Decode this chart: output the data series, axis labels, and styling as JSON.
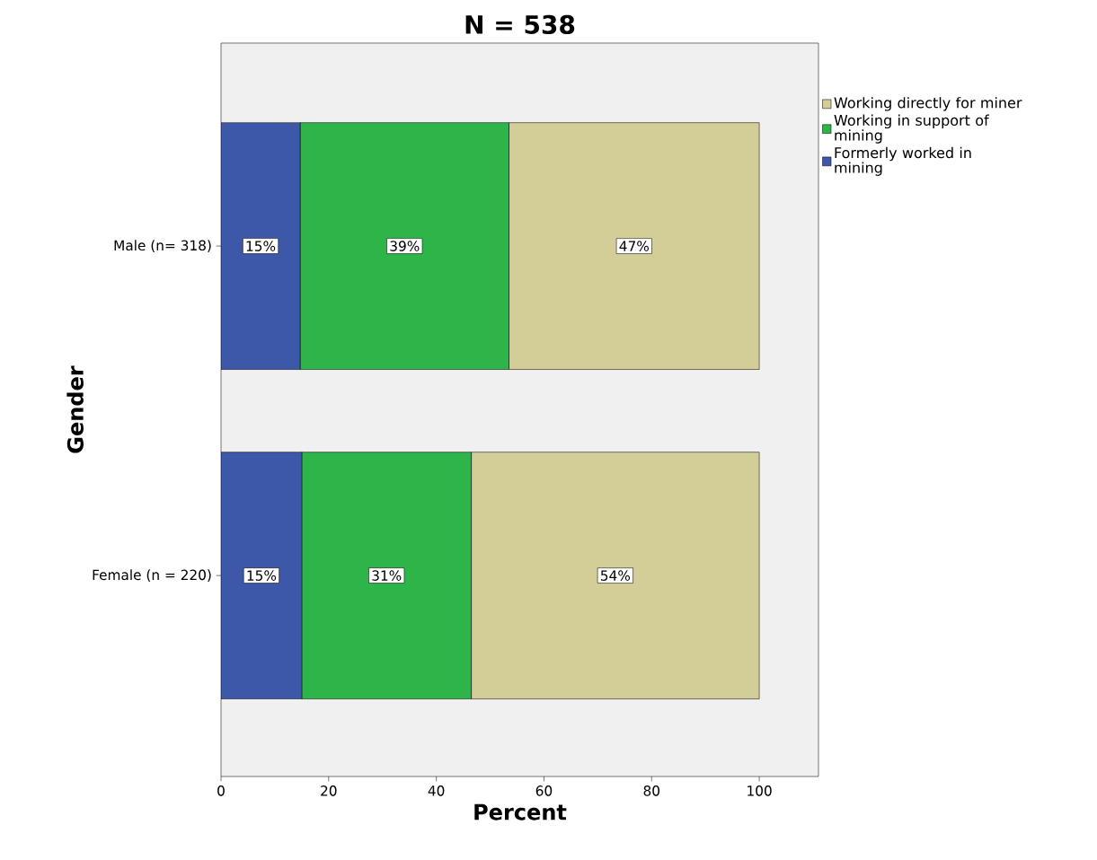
{
  "chart_data": {
    "type": "bar",
    "orientation": "horizontal",
    "stacked": true,
    "title": "N = 538",
    "xlabel": "Percent",
    "ylabel": "Gender",
    "categories": [
      "Male (n= 318)",
      "Female (n = 220)"
    ],
    "series": [
      {
        "name": "Formerly worked in mining",
        "color": "#3d58a8",
        "values": [
          14.7,
          15
        ],
        "value_labels": [
          "15%",
          "15%"
        ]
      },
      {
        "name": "Working in support of mining",
        "color": "#2db54a",
        "values": [
          38.8,
          31.5
        ],
        "value_labels": [
          "39%",
          "31%"
        ]
      },
      {
        "name": "Working directly for miner",
        "color": "#d3cd98",
        "values": [
          46.5,
          53.5
        ],
        "value_labels": [
          "47%",
          "54%"
        ]
      }
    ],
    "xlim": [
      0,
      111
    ],
    "xticks": [
      0,
      20,
      40,
      60,
      80,
      100
    ],
    "legend": "top right",
    "grid": false
  }
}
